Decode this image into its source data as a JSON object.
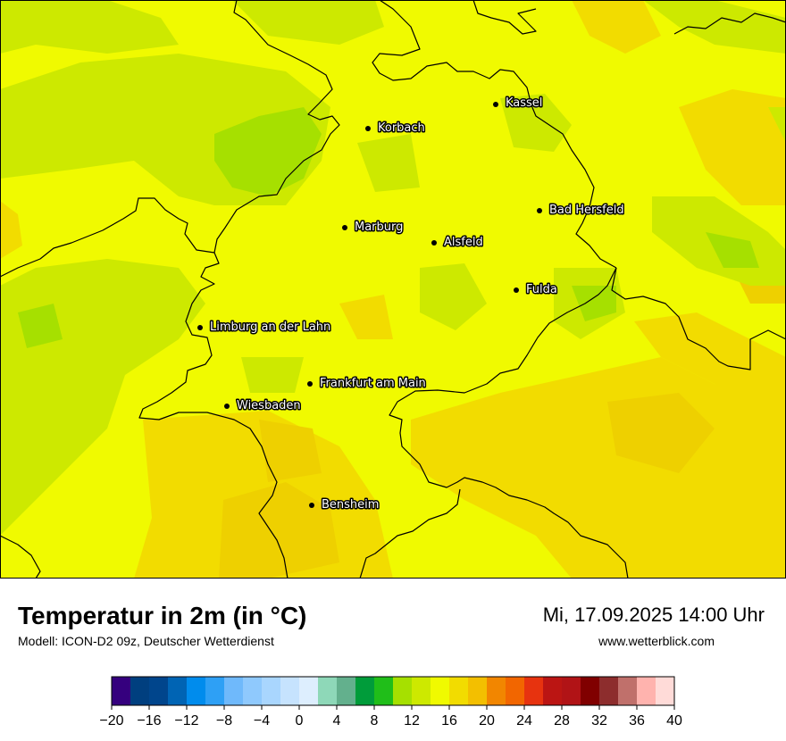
{
  "title": "Temperatur in 2m (in °C)",
  "model": "Modell: ICON-D2 09z, Deutscher Wetterdienst",
  "datetime": "Mi, 17.09.2025 14:00 Uhr",
  "website": "www.wetterblick.com",
  "map": {
    "colors": {
      "base_yellow": "#f0fa00",
      "light_green": "#cde900",
      "mid_green": "#a6e000",
      "orange_yellow": "#f2dc00",
      "amber": "#eed000",
      "border": "#000000"
    },
    "cities": [
      {
        "name": "Kassel"
      },
      {
        "name": "Korbach"
      },
      {
        "name": "Bad Hersfeld"
      },
      {
        "name": "Marburg"
      },
      {
        "name": "Alsfeld"
      },
      {
        "name": "Fulda"
      },
      {
        "name": "Limburg an der Lahn"
      },
      {
        "name": "Frankfurt am Main"
      },
      {
        "name": "Wiesbaden"
      },
      {
        "name": "Bensheim"
      }
    ]
  },
  "legend": {
    "unit": "°C",
    "ticks": [
      "−20",
      "−16",
      "−12",
      "−8",
      "−4",
      "0",
      "4",
      "8",
      "12",
      "16",
      "20",
      "24",
      "28",
      "32",
      "36",
      "40"
    ],
    "colors": [
      "#35007e",
      "#003f7f",
      "#00458c",
      "#0064b4",
      "#008ced",
      "#2ea0f5",
      "#6fb9fb",
      "#8fc9fd",
      "#a9d6fe",
      "#c6e3fe",
      "#ddeefe",
      "#8ed8b8",
      "#63b08d",
      "#009c3a",
      "#20be19",
      "#a6e000",
      "#cde900",
      "#f0fa00",
      "#f2dc00",
      "#f3bf00",
      "#f28600",
      "#f26600",
      "#e7330f",
      "#bb1513",
      "#b11316",
      "#800000",
      "#8d2d2d",
      "#c0706b",
      "#ffb3ae",
      "#ffdbd8"
    ]
  }
}
